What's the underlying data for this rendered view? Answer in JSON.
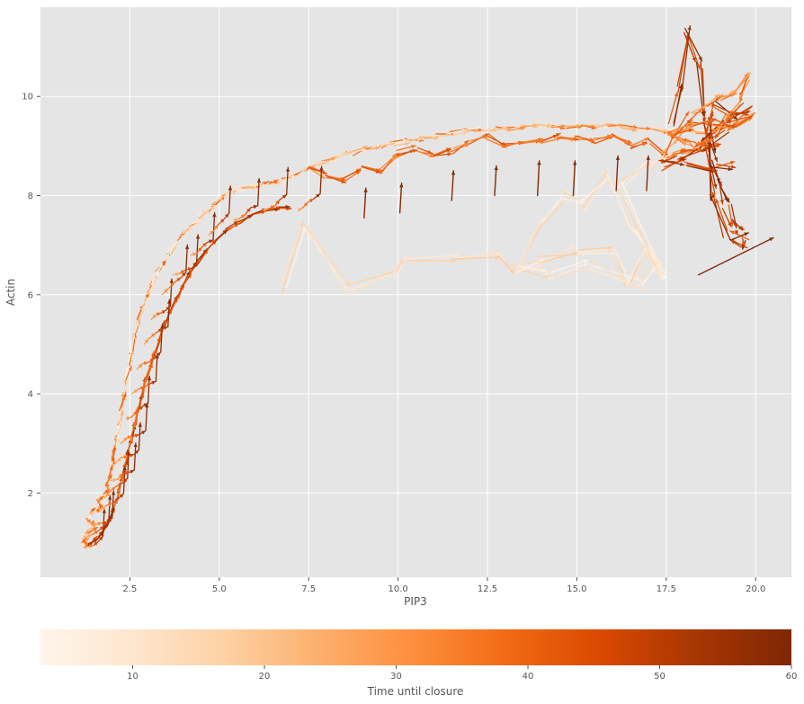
{
  "chart_data": {
    "type": "quiver",
    "style": "ggplot",
    "colormap": "Oranges",
    "xlabel": "PIP3",
    "ylabel": "Actin",
    "xlim": [
      0.0,
      21.0
    ],
    "ylim": [
      0.3,
      11.8
    ],
    "x_ticks": [
      2.5,
      5.0,
      7.5,
      10.0,
      12.5,
      15.0,
      17.5,
      20.0
    ],
    "x_tick_labels": [
      "2.5",
      "5.0",
      "7.5",
      "10.0",
      "12.5",
      "15.0",
      "17.5",
      "20.0"
    ],
    "y_ticks": [
      2,
      4,
      6,
      8,
      10
    ],
    "y_tick_labels": [
      "2",
      "4",
      "6",
      "8",
      "10"
    ],
    "grid": true,
    "colorbar": {
      "label": "Time until closure",
      "range": [
        3,
        60
      ],
      "ticks": [
        10,
        20,
        30,
        40,
        50,
        60
      ],
      "tick_labels": [
        "10",
        "20",
        "30",
        "40",
        "50",
        "60"
      ],
      "colors": [
        "#fff5eb",
        "#fee6ce",
        "#fdd0a2",
        "#fdae6b",
        "#fd8d3c",
        "#f16913",
        "#d94801",
        "#a63603",
        "#7f2704"
      ]
    },
    "trajectories": [
      {
        "points": [
          [
            1.25,
            0.95
          ],
          [
            1.25,
            1.0
          ],
          [
            1.2,
            1.05
          ],
          [
            1.3,
            1.1
          ],
          [
            1.25,
            1.15
          ],
          [
            1.35,
            1.22
          ],
          [
            1.55,
            1.3
          ],
          [
            1.45,
            1.4
          ],
          [
            1.3,
            1.48
          ],
          [
            1.4,
            1.58
          ],
          [
            1.55,
            1.65
          ],
          [
            1.7,
            1.72
          ],
          [
            1.6,
            1.82
          ],
          [
            1.75,
            1.95
          ],
          [
            1.9,
            2.05
          ],
          [
            1.85,
            2.2
          ],
          [
            1.95,
            2.35
          ],
          [
            2.05,
            2.55
          ],
          [
            2.0,
            2.75
          ],
          [
            2.1,
            2.95
          ],
          [
            2.15,
            3.15
          ],
          [
            2.2,
            3.4
          ],
          [
            2.25,
            3.7
          ],
          [
            2.35,
            4.0
          ],
          [
            2.4,
            4.3
          ],
          [
            2.5,
            4.6
          ],
          [
            2.55,
            4.9
          ],
          [
            2.65,
            5.2
          ],
          [
            2.75,
            5.5
          ],
          [
            2.85,
            5.75
          ],
          [
            3.0,
            6.0
          ],
          [
            3.15,
            6.25
          ],
          [
            3.25,
            6.45
          ],
          [
            3.45,
            6.65
          ],
          [
            3.6,
            6.85
          ],
          [
            3.8,
            7.05
          ],
          [
            4.0,
            7.2
          ],
          [
            4.25,
            7.4
          ],
          [
            4.45,
            7.55
          ],
          [
            4.7,
            7.7
          ],
          [
            4.9,
            7.85
          ],
          [
            5.15,
            8.0
          ],
          [
            5.45,
            8.1
          ],
          [
            5.7,
            8.15
          ],
          [
            6.0,
            8.2
          ],
          [
            6.35,
            8.25
          ],
          [
            6.7,
            8.3
          ],
          [
            7.1,
            8.4
          ],
          [
            7.5,
            8.55
          ],
          [
            7.9,
            8.65
          ],
          [
            8.3,
            8.75
          ],
          [
            8.7,
            8.85
          ],
          [
            9.1,
            8.95
          ],
          [
            9.5,
            9.0
          ],
          [
            9.9,
            9.05
          ],
          [
            10.3,
            9.1
          ],
          [
            10.7,
            9.15
          ],
          [
            11.1,
            9.2
          ],
          [
            11.5,
            9.25
          ],
          [
            11.9,
            9.3
          ],
          [
            12.3,
            9.35
          ],
          [
            12.7,
            9.35
          ],
          [
            13.1,
            9.35
          ],
          [
            13.5,
            9.4
          ],
          [
            13.9,
            9.4
          ],
          [
            14.3,
            9.4
          ],
          [
            14.7,
            9.4
          ],
          [
            15.1,
            9.4
          ],
          [
            15.5,
            9.4
          ],
          [
            15.9,
            9.4
          ],
          [
            16.3,
            9.4
          ],
          [
            16.7,
            9.35
          ],
          [
            17.1,
            9.35
          ],
          [
            17.5,
            9.3
          ],
          [
            17.9,
            9.3
          ],
          [
            18.3,
            9.3
          ],
          [
            18.7,
            9.3
          ],
          [
            19.1,
            9.35
          ],
          [
            19.5,
            9.45
          ],
          [
            19.9,
            9.55
          ]
        ],
        "color_range": [
          3,
          40
        ],
        "jitter": 0.1,
        "seed": 11
      },
      {
        "points": [
          [
            1.3,
            0.92
          ],
          [
            1.45,
            1.0
          ],
          [
            1.6,
            1.1
          ],
          [
            1.75,
            1.22
          ],
          [
            1.85,
            1.35
          ],
          [
            1.95,
            1.5
          ],
          [
            2.05,
            1.7
          ],
          [
            2.15,
            1.9
          ],
          [
            2.2,
            2.1
          ],
          [
            2.3,
            2.35
          ],
          [
            2.4,
            2.6
          ],
          [
            2.45,
            2.85
          ],
          [
            2.55,
            3.1
          ],
          [
            2.65,
            3.4
          ],
          [
            2.75,
            3.7
          ],
          [
            2.85,
            4.0
          ],
          [
            2.95,
            4.3
          ],
          [
            3.1,
            4.6
          ],
          [
            3.2,
            4.85
          ],
          [
            3.35,
            5.15
          ],
          [
            3.5,
            5.45
          ],
          [
            3.65,
            5.7
          ],
          [
            3.85,
            5.95
          ],
          [
            4.0,
            6.2
          ],
          [
            4.2,
            6.45
          ],
          [
            4.4,
            6.65
          ],
          [
            4.65,
            6.9
          ],
          [
            4.9,
            7.1
          ],
          [
            5.2,
            7.3
          ],
          [
            5.55,
            7.45
          ],
          [
            5.9,
            7.6
          ],
          [
            6.3,
            7.7
          ],
          [
            6.7,
            7.75
          ],
          [
            7.0,
            7.75
          ]
        ],
        "color_range": [
          35,
          60
        ],
        "jitter": 0.06,
        "seed": 23
      },
      {
        "points": [
          [
            7.5,
            8.6
          ],
          [
            8.0,
            8.4
          ],
          [
            8.5,
            8.3
          ],
          [
            9.0,
            8.55
          ],
          [
            9.5,
            8.5
          ],
          [
            10.0,
            8.85
          ],
          [
            10.5,
            8.95
          ],
          [
            11.0,
            8.8
          ],
          [
            11.5,
            8.9
          ],
          [
            12.0,
            9.05
          ],
          [
            12.5,
            9.2
          ],
          [
            13.0,
            9.0
          ],
          [
            13.5,
            9.1
          ],
          [
            14.0,
            9.1
          ],
          [
            14.5,
            9.2
          ],
          [
            15.0,
            9.15
          ],
          [
            15.5,
            9.1
          ],
          [
            16.0,
            9.2
          ],
          [
            16.5,
            9.0
          ],
          [
            17.0,
            9.1
          ],
          [
            17.5,
            8.8
          ],
          [
            18.0,
            8.9
          ],
          [
            18.5,
            8.95
          ],
          [
            19.0,
            9.0
          ]
        ],
        "color_range": [
          30,
          45
        ],
        "jitter": 0.12,
        "seed": 37
      },
      {
        "points": [
          [
            6.8,
            6.1
          ],
          [
            7.4,
            7.4
          ],
          [
            8.6,
            6.1
          ],
          [
            9.9,
            6.4
          ],
          [
            10.2,
            6.7
          ],
          [
            11.6,
            6.7
          ],
          [
            12.8,
            6.8
          ],
          [
            13.2,
            6.5
          ],
          [
            14.0,
            6.7
          ],
          [
            15.0,
            6.9
          ],
          [
            16.0,
            6.9
          ],
          [
            16.4,
            6.2
          ],
          [
            17.0,
            6.9
          ],
          [
            17.4,
            6.4
          ],
          [
            16.6,
            7.4
          ],
          [
            15.8,
            8.4
          ],
          [
            15.2,
            7.8
          ],
          [
            14.6,
            8.0
          ],
          [
            14.0,
            7.4
          ],
          [
            13.4,
            6.6
          ],
          [
            14.2,
            6.4
          ],
          [
            15.4,
            6.6
          ],
          [
            16.8,
            6.2
          ],
          [
            17.3,
            6.6
          ],
          [
            16.2,
            8.2
          ],
          [
            17.0,
            8.6
          ],
          [
            17.6,
            8.8
          ]
        ],
        "color_range": [
          3,
          18
        ],
        "jitter": 0.2,
        "seed": 51
      },
      {
        "points": [
          [
            17.6,
            9.4
          ],
          [
            17.9,
            10.2
          ],
          [
            18.1,
            11.3
          ],
          [
            18.4,
            10.6
          ],
          [
            18.6,
            9.6
          ],
          [
            18.8,
            8.8
          ],
          [
            19.0,
            8.2
          ],
          [
            19.2,
            7.8
          ],
          [
            19.4,
            7.4
          ],
          [
            19.6,
            7.2
          ],
          [
            19.7,
            7.0
          ],
          [
            19.2,
            7.2
          ],
          [
            18.8,
            8.0
          ],
          [
            18.6,
            9.2
          ],
          [
            18.9,
            9.8
          ],
          [
            19.4,
            9.6
          ],
          [
            19.8,
            9.7
          ],
          [
            19.2,
            9.4
          ],
          [
            18.4,
            9.0
          ],
          [
            17.8,
            8.8
          ],
          [
            17.4,
            8.6
          ],
          [
            18.0,
            8.7
          ],
          [
            18.8,
            8.6
          ],
          [
            19.4,
            8.6
          ]
        ],
        "color_range": [
          40,
          60
        ],
        "jitter": 0.25,
        "seed": 67
      },
      {
        "points": [
          [
            17.4,
            8.8
          ],
          [
            17.8,
            9.2
          ],
          [
            18.2,
            9.6
          ],
          [
            18.6,
            9.8
          ],
          [
            19.0,
            10.0
          ],
          [
            19.4,
            10.1
          ],
          [
            19.8,
            10.4
          ],
          [
            19.6,
            9.9
          ],
          [
            19.2,
            9.6
          ],
          [
            18.8,
            9.2
          ],
          [
            18.4,
            9.0
          ],
          [
            18.0,
            9.1
          ],
          [
            17.6,
            9.3
          ],
          [
            18.2,
            9.4
          ],
          [
            18.8,
            9.5
          ],
          [
            19.4,
            9.4
          ],
          [
            19.9,
            9.6
          ]
        ],
        "color_range": [
          25,
          45
        ],
        "jitter": 0.18,
        "seed": 79
      }
    ],
    "branch_rows": [
      {
        "x": 1.2,
        "y": 0.9
      },
      {
        "x": 1.3,
        "y": 1.12
      },
      {
        "x": 1.45,
        "y": 1.35
      },
      {
        "x": 1.65,
        "y": 1.62
      },
      {
        "x": 1.8,
        "y": 1.9
      },
      {
        "x": 1.95,
        "y": 2.25
      },
      {
        "x": 2.1,
        "y": 2.6
      },
      {
        "x": 2.25,
        "y": 3.0
      },
      {
        "x": 2.4,
        "y": 3.5
      },
      {
        "x": 2.55,
        "y": 4.0
      },
      {
        "x": 2.7,
        "y": 4.5
      },
      {
        "x": 2.9,
        "y": 5.0
      },
      {
        "x": 3.1,
        "y": 5.5
      },
      {
        "x": 3.4,
        "y": 6.0
      },
      {
        "x": 3.7,
        "y": 6.4
      },
      {
        "x": 4.2,
        "y": 6.8
      },
      {
        "x": 4.7,
        "y": 7.2
      },
      {
        "x": 5.4,
        "y": 7.5
      },
      {
        "x": 6.2,
        "y": 7.7
      },
      {
        "x": 7.2,
        "y": 7.7
      }
    ],
    "spikes": [
      {
        "x": 9.05,
        "y": 7.55,
        "dx": 0.05,
        "dy": 0.6
      },
      {
        "x": 10.05,
        "y": 7.65,
        "dx": 0.05,
        "dy": 0.6
      },
      {
        "x": 11.5,
        "y": 7.9,
        "dx": 0.05,
        "dy": 0.6
      },
      {
        "x": 12.7,
        "y": 8.0,
        "dx": 0.05,
        "dy": 0.6
      },
      {
        "x": 13.9,
        "y": 8.0,
        "dx": 0.05,
        "dy": 0.7
      },
      {
        "x": 14.9,
        "y": 8.0,
        "dx": 0.05,
        "dy": 0.7
      },
      {
        "x": 16.1,
        "y": 8.1,
        "dx": 0.05,
        "dy": 0.7
      },
      {
        "x": 16.95,
        "y": 8.1,
        "dx": 0.05,
        "dy": 0.7
      },
      {
        "x": 18.4,
        "y": 6.4,
        "dx": 2.1,
        "dy": 0.75
      },
      {
        "x": 19.3,
        "y": 7.1,
        "dx": 0.5,
        "dy": 0.15
      }
    ]
  }
}
